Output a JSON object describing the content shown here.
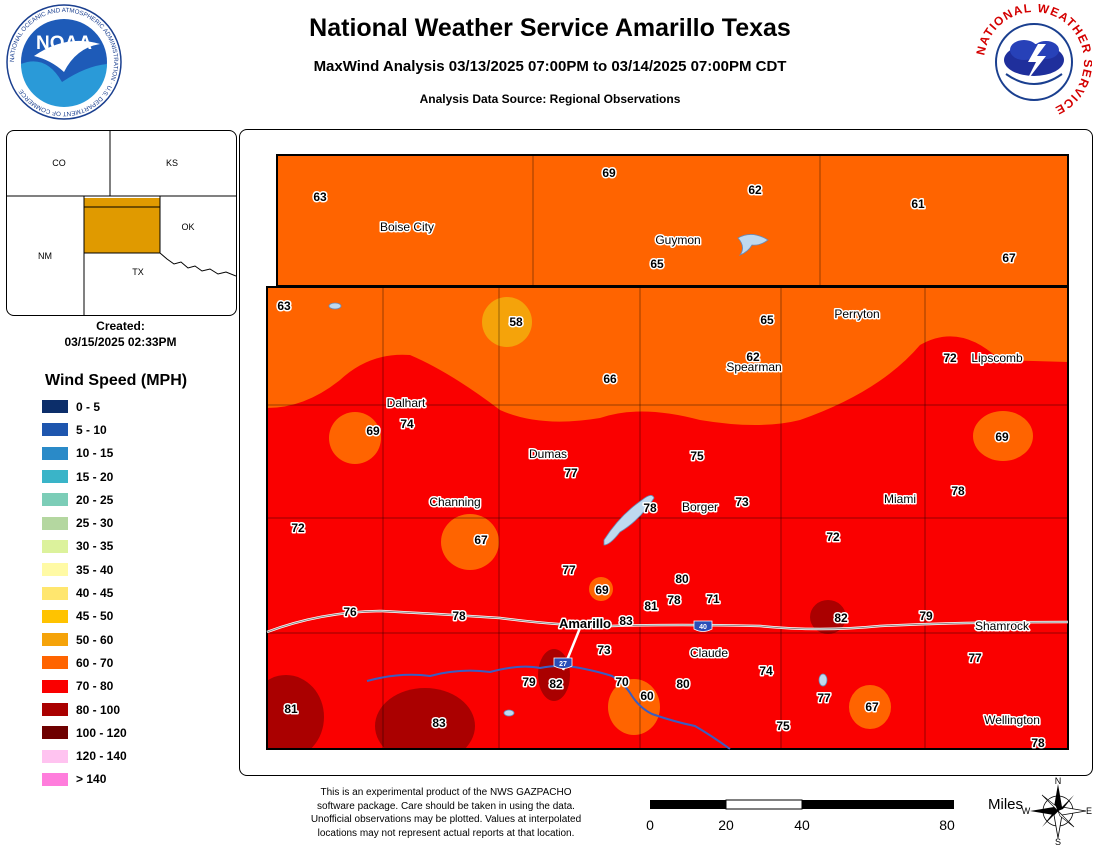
{
  "header": {
    "title": "National Weather Service Amarillo Texas",
    "subtitle": "MaxWind Analysis 03/13/2025 07:00PM to 03/14/2025 07:00PM CDT",
    "source": "Analysis Data Source: Regional Observations"
  },
  "logos": {
    "noaa_label": "NOAA",
    "noaa_ring_text": "NATIONAL OCEANIC AND ATMOSPHERIC ADMINISTRATION · U.S. DEPARTMENT OF COMMERCE",
    "nws_ring_text": "NATIONAL WEATHER SERVICE"
  },
  "inset": {
    "states": [
      "CO",
      "KS",
      "NM",
      "OK",
      "TX"
    ],
    "highlight_color": "#e09a00"
  },
  "created": {
    "label": "Created:",
    "timestamp": "03/15/2025 02:33PM"
  },
  "legend": {
    "title": "Wind Speed (MPH)",
    "items": [
      {
        "label": "0 - 5",
        "color": "#0c2e6a"
      },
      {
        "label": "5 - 10",
        "color": "#1e56ae"
      },
      {
        "label": "10 - 15",
        "color": "#2a8ac8"
      },
      {
        "label": "15 - 20",
        "color": "#3ab4c8"
      },
      {
        "label": "20 - 25",
        "color": "#7ccdb7"
      },
      {
        "label": "25 - 30",
        "color": "#b4d7a0"
      },
      {
        "label": "30 - 35",
        "color": "#dcf29c"
      },
      {
        "label": "35 - 40",
        "color": "#fffaa5"
      },
      {
        "label": "40 - 45",
        "color": "#ffe66e"
      },
      {
        "label": "45 - 50",
        "color": "#ffc300"
      },
      {
        "label": "50 - 60",
        "color": "#f5a30a"
      },
      {
        "label": "60 - 70",
        "color": "#ff6400"
      },
      {
        "label": "70 - 80",
        "color": "#fa0000"
      },
      {
        "label": "80 - 100",
        "color": "#aa0000"
      },
      {
        "label": "100 - 120",
        "color": "#6e0000"
      },
      {
        "label": "120 - 140",
        "color": "#ffc3f0"
      },
      {
        "label": "> 140",
        "color": "#ff7ddc"
      }
    ]
  },
  "map": {
    "cities": [
      "Boise City",
      "Guymon",
      "Perryton",
      "Spearman",
      "Lipscomb",
      "Dalhart",
      "Dumas",
      "Borger",
      "Channing",
      "Miami",
      "Amarillo",
      "Claude",
      "Shamrock",
      "Wellington"
    ],
    "interstates": [
      "27",
      "40"
    ],
    "observations": [
      "63",
      "69",
      "62",
      "61",
      "67",
      "65",
      "63",
      "58",
      "65",
      "62",
      "72",
      "66",
      "69",
      "74",
      "75",
      "69",
      "77",
      "78",
      "73",
      "78",
      "72",
      "67",
      "72",
      "77",
      "69",
      "80",
      "81",
      "78",
      "71",
      "76",
      "78",
      "83",
      "82",
      "79",
      "73",
      "77",
      "79",
      "82",
      "70",
      "80",
      "74",
      "60",
      "77",
      "81",
      "83",
      "75",
      "67",
      "78"
    ]
  },
  "footer": {
    "disclaimer": [
      "This is an experimental product of the NWS GAZPACHO",
      "software package. Care should be taken in using the data.",
      "Unofficial observations may be plotted. Values at interpolated",
      "locations may not represent actual reports at that location."
    ],
    "scale_labels": [
      "0",
      "20",
      "40",
      "80"
    ],
    "scale_units": "Miles",
    "compass": [
      "N",
      "E",
      "S",
      "W"
    ]
  }
}
